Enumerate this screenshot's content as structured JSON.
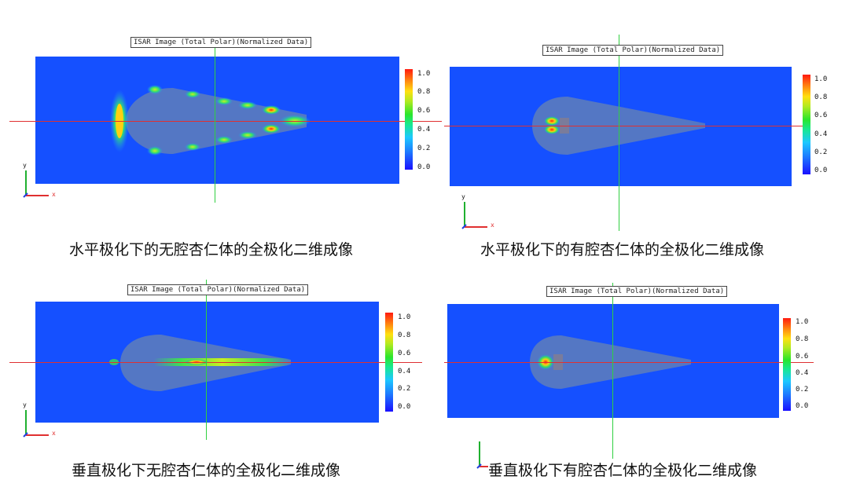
{
  "panels": [
    {
      "title": "ISAR Image (Total Polar)(Normalized Data)",
      "caption": "水平极化下的无腔杏仁体的全极化二维成像",
      "colorbar_ticks": [
        "1.0",
        "0.8",
        "0.6",
        "0.4",
        "0.2",
        "0.0"
      ]
    },
    {
      "title": "ISAR Image (Total Polar)(Normalized Data)",
      "caption": "水平极化下的有腔杏仁体的全极化二维成像",
      "colorbar_ticks": [
        "1.0",
        "0.8",
        "0.6",
        "0.4",
        "0.2",
        "0.0"
      ]
    },
    {
      "title": "ISAR Image (Total Polar)(Normalized Data)",
      "caption": "垂直极化下无腔杏仁体的全极化二维成像",
      "colorbar_ticks": [
        "1.0",
        "0.8",
        "0.6",
        "0.4",
        "0.2",
        "0.0"
      ]
    },
    {
      "title": "ISAR Image (Total Polar)(Normalized Data)",
      "caption": "垂直极化下有腔杏仁体的全极化二维成像",
      "colorbar_ticks": [
        "1.0",
        "0.8",
        "0.6",
        "0.4",
        "0.2",
        "0.0"
      ]
    }
  ],
  "axis_labels": {
    "x": "x",
    "y": "y"
  }
}
